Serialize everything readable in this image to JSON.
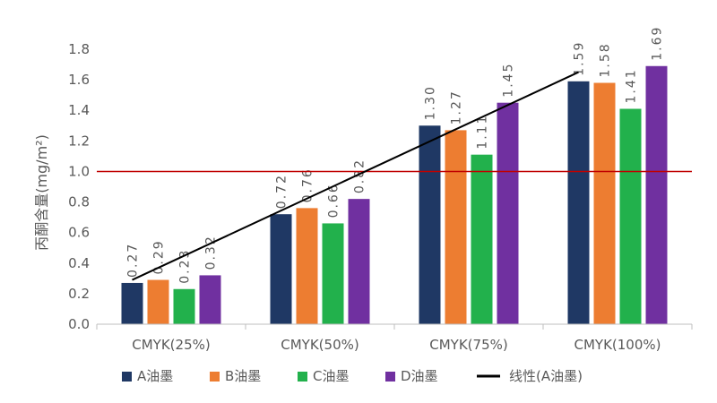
{
  "chart_data": {
    "type": "bar",
    "title": "",
    "xlabel": "",
    "ylabel": "丙酮含量(mg/m²)",
    "ylim": [
      0,
      1.8
    ],
    "yticks": [
      "0.0",
      "0.2",
      "0.4",
      "0.6",
      "0.8",
      "1.0",
      "1.2",
      "1.4",
      "1.6",
      "1.8"
    ],
    "categories": [
      "CMYK(25%)",
      "CMYK(50%)",
      "CMYK(75%)",
      "CMYK(100%)"
    ],
    "series": [
      {
        "name": "A油墨",
        "color": "#1f3864",
        "values": [
          0.27,
          0.72,
          1.3,
          1.59
        ],
        "labels": [
          "0.27",
          "0.72",
          "1.30",
          "1.59"
        ]
      },
      {
        "name": "B油墨",
        "color": "#ed7d31",
        "values": [
          0.29,
          0.76,
          1.27,
          1.58
        ],
        "labels": [
          "0.29",
          "0.76",
          "1.27",
          "1.58"
        ]
      },
      {
        "name": "C油墨",
        "color": "#22b14c",
        "values": [
          0.23,
          0.66,
          1.11,
          1.41
        ],
        "labels": [
          "0.23",
          "0.66",
          "1.11",
          "1.41"
        ]
      },
      {
        "name": "D油墨",
        "color": "#7030a0",
        "values": [
          0.32,
          0.82,
          1.45,
          1.69
        ],
        "labels": [
          "0.32",
          "0.82",
          "1.45",
          "1.69"
        ]
      }
    ],
    "trendline": {
      "name": "线性(A油墨)",
      "color": "#000000",
      "y_start": 0.29,
      "y_end": 1.65
    },
    "reference_line": {
      "y": 1.0,
      "color": "#c00000"
    },
    "grid": false,
    "legend": "bottom"
  }
}
